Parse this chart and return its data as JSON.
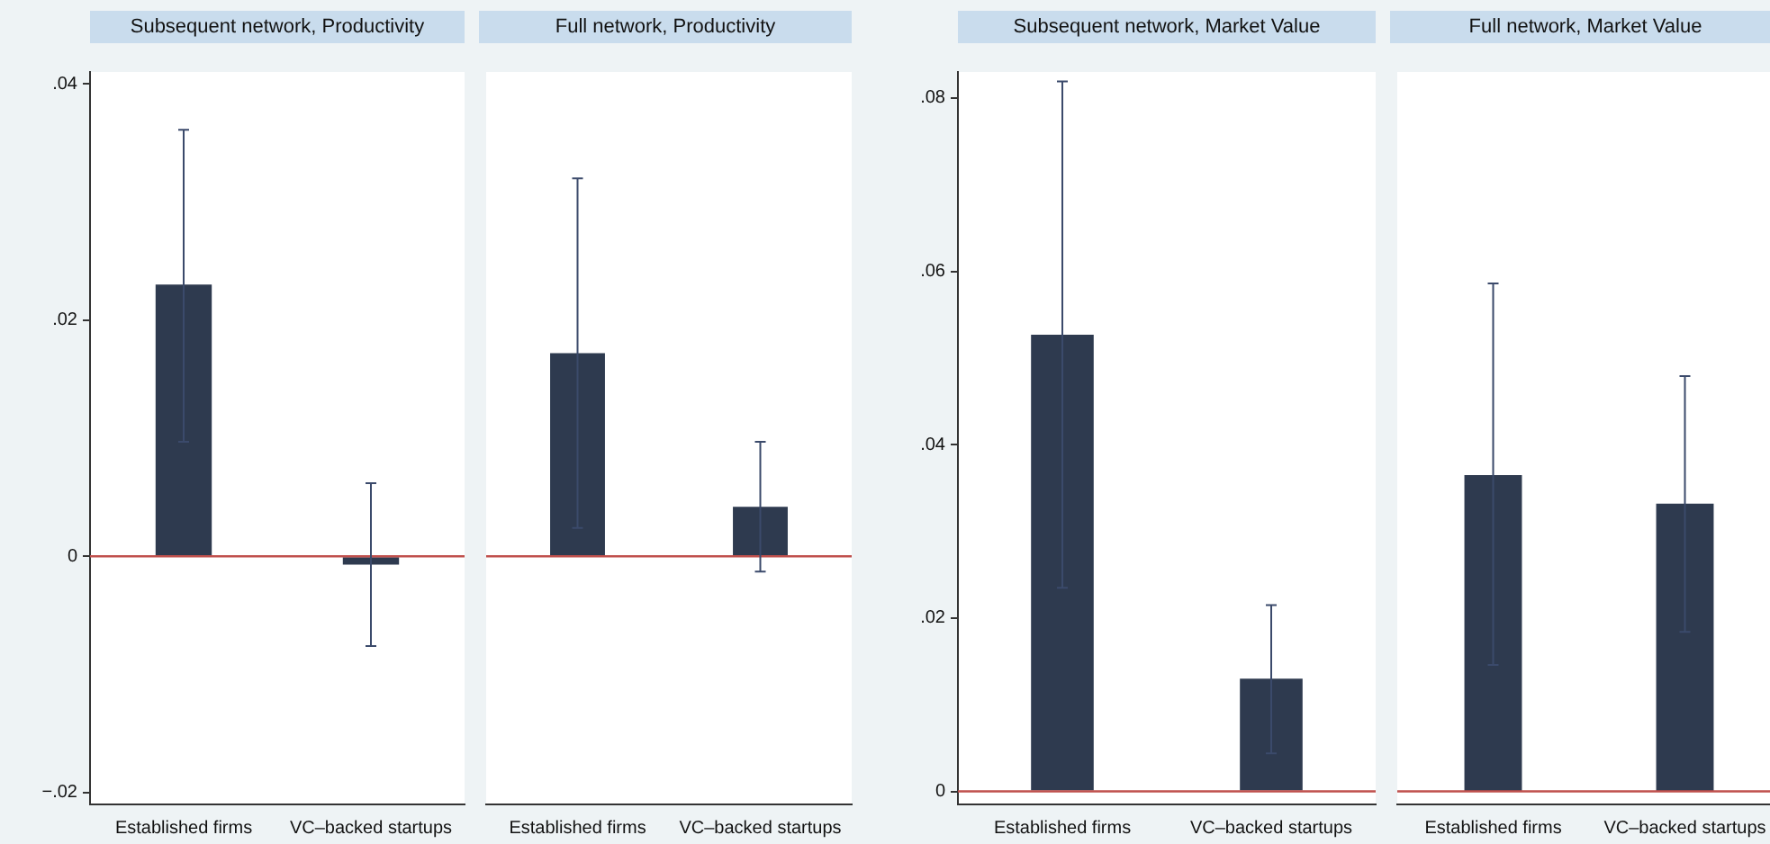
{
  "chart_data": [
    {
      "type": "bar",
      "title": "Subsequent network, Productivity",
      "categories": [
        "Established firms",
        "VC–backed startups"
      ],
      "values": [
        0.023,
        -0.0007
      ],
      "errors": [
        [
          0.0097,
          0.0361
        ],
        [
          -0.0076,
          0.0062
        ]
      ],
      "color": "#2e3a4f",
      "ylim": [
        -0.021,
        0.041
      ],
      "yticks": [
        {
          "value": -0.02,
          "label": "−.02"
        },
        0,
        {
          "value": 0.02,
          "label": ".02"
        },
        {
          "value": 0.04,
          "label": ".04"
        }
      ],
      "ref_lines": [
        {
          "axis": "y",
          "value": 0,
          "color": "#c0504d"
        }
      ],
      "grid": false,
      "legend": false
    },
    {
      "type": "bar",
      "title": "Full network, Productivity",
      "categories": [
        "Established firms",
        "VC–backed startups"
      ],
      "values": [
        0.0172,
        0.0042
      ],
      "errors": [
        [
          0.0024,
          0.032
        ],
        [
          -0.0013,
          0.0097
        ]
      ],
      "color": "#2e3a4f",
      "ylim": [
        -0.021,
        0.041
      ],
      "tick_labels": "x",
      "ref_lines": [
        {
          "axis": "y",
          "value": 0,
          "color": "#c0504d"
        }
      ],
      "grid": false,
      "legend": false
    },
    {
      "type": "bar",
      "title": "Subsequent network, Market Value",
      "categories": [
        "Established firms",
        "VC–backed startups"
      ],
      "values": [
        0.0527,
        0.013
      ],
      "errors": [
        [
          0.0235,
          0.0819
        ],
        [
          0.0044,
          0.0215
        ]
      ],
      "color": "#2e3a4f",
      "ylim": [
        -0.0015,
        0.083
      ],
      "yticks": [
        0,
        {
          "value": 0.02,
          "label": ".02"
        },
        {
          "value": 0.04,
          "label": ".04"
        },
        {
          "value": 0.06,
          "label": ".06"
        },
        {
          "value": 0.08,
          "label": ".08"
        }
      ],
      "ref_lines": [
        {
          "axis": "y",
          "value": 0,
          "color": "#c0504d"
        }
      ],
      "grid": false,
      "legend": false
    },
    {
      "type": "bar",
      "title": "Full network, Market Value",
      "categories": [
        "Established firms",
        "VC–backed startups"
      ],
      "values": [
        0.0365,
        0.0332
      ],
      "errors": [
        [
          0.0146,
          0.0586
        ],
        [
          0.0184,
          0.0479
        ]
      ],
      "color": "#2e3a4f",
      "ylim": [
        -0.0015,
        0.083
      ],
      "tick_labels": "x",
      "ref_lines": [
        {
          "axis": "y",
          "value": 0,
          "color": "#c0504d"
        }
      ],
      "grid": false,
      "legend": false
    }
  ]
}
